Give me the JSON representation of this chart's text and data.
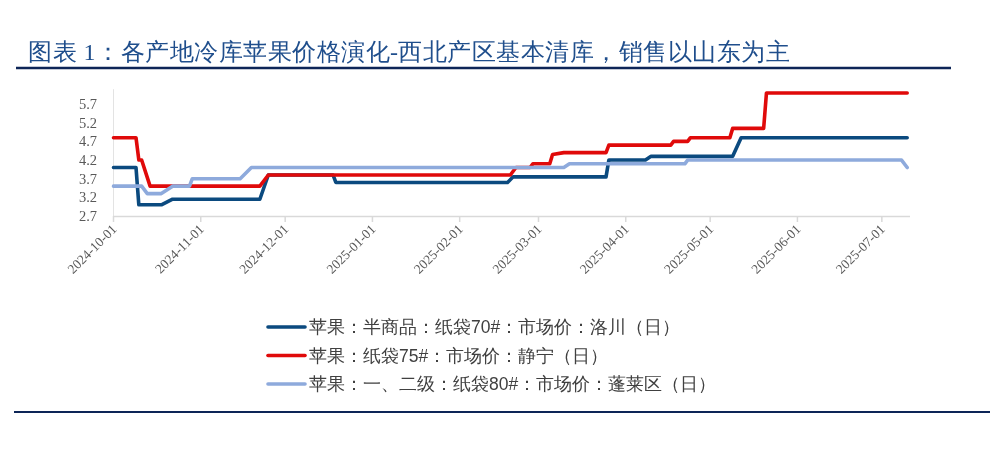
{
  "chart_data": {
    "type": "line",
    "title": "图表 1：各产地冷库苹果价格演化-西北产区基本清库，销售以山东为主",
    "series": [
      {
        "name": "苹果：半商品：纸袋70#：市场价：洛川（日）",
        "color": "#0b4a7f",
        "x": [
          "2024-10-01",
          "2024-10-09",
          "2024-10-10",
          "2024-10-18",
          "2024-10-22",
          "2024-11-22",
          "2024-11-25",
          "2024-12-18",
          "2024-12-19",
          "2025-02-18",
          "2025-02-20",
          "2025-03-25",
          "2025-03-26",
          "2025-04-08",
          "2025-04-10",
          "2025-05-09",
          "2025-05-12",
          "2025-07-10"
        ],
        "values": [
          4.0,
          4.0,
          3.0,
          3.0,
          3.15,
          3.15,
          3.8,
          3.8,
          3.6,
          3.6,
          3.75,
          3.75,
          4.2,
          4.2,
          4.3,
          4.3,
          4.8,
          4.8
        ]
      },
      {
        "name": "苹果：纸袋75#：市场价：静宁（日）",
        "color": "#e00a0a",
        "x": [
          "2024-10-01",
          "2024-10-09",
          "2024-10-10",
          "2024-10-11",
          "2024-10-14",
          "2024-11-22",
          "2024-11-25",
          "2025-02-19",
          "2025-02-21",
          "2025-02-26",
          "2025-02-27",
          "2025-03-05",
          "2025-03-06",
          "2025-03-10",
          "2025-03-25",
          "2025-03-26",
          "2025-04-17",
          "2025-04-18",
          "2025-04-23",
          "2025-04-24",
          "2025-05-08",
          "2025-05-09",
          "2025-05-20",
          "2025-05-21",
          "2025-07-10"
        ],
        "values": [
          4.8,
          4.8,
          4.2,
          4.2,
          3.5,
          3.5,
          3.8,
          3.8,
          4.0,
          4.0,
          4.1,
          4.1,
          4.35,
          4.4,
          4.4,
          4.6,
          4.6,
          4.7,
          4.7,
          4.8,
          4.8,
          5.05,
          5.05,
          6.0,
          6.0
        ]
      },
      {
        "name": "苹果：一、二级：纸袋80#：市场价：蓬莱区（日）",
        "color": "#8eaadc",
        "x": [
          "2024-10-01",
          "2024-10-11",
          "2024-10-13",
          "2024-10-18",
          "2024-10-22",
          "2024-10-28",
          "2024-10-29",
          "2024-11-15",
          "2024-11-19",
          "2025-03-10",
          "2025-03-12",
          "2025-04-22",
          "2025-04-23",
          "2025-07-08",
          "2025-07-10"
        ],
        "values": [
          3.5,
          3.5,
          3.3,
          3.3,
          3.5,
          3.5,
          3.7,
          3.7,
          4.0,
          4.0,
          4.1,
          4.1,
          4.2,
          4.2,
          4.0
        ]
      }
    ],
    "xlim": [
      "2024-10-01",
      "2025-07-11"
    ],
    "xticks": [
      "2024-10-01",
      "2024-11-01",
      "2024-12-01",
      "2025-01-01",
      "2025-02-01",
      "2025-03-01",
      "2025-04-01",
      "2025-05-01",
      "2025-06-01",
      "2025-07-01"
    ],
    "ylim": [
      2.7,
      6.1
    ],
    "yticks": [
      2.7,
      3.2,
      3.7,
      4.2,
      4.7,
      5.2,
      5.7
    ],
    "legend": "bottom",
    "line_style": "solid"
  }
}
